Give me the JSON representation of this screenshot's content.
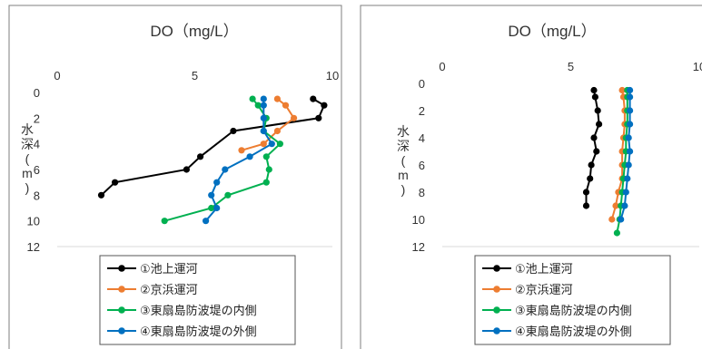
{
  "charts": [
    {
      "type": "line",
      "title": "DO（mg/L）",
      "ylabel": "水深(m)",
      "x_ticks": [
        "0",
        "5",
        "10"
      ],
      "y_ticks": [
        "0",
        "2",
        "4",
        "6",
        "8",
        "10",
        "12"
      ],
      "xlim": [
        0,
        10
      ],
      "ylim": [
        0,
        12
      ],
      "grid": false,
      "legend_position": "bottom",
      "series": [
        {
          "name": "①池上運河",
          "color": "#000000",
          "x": [
            9.3,
            9.7,
            9.5,
            6.4,
            5.2,
            4.7,
            2.1,
            1.6
          ],
          "y": [
            0.5,
            1,
            2,
            3,
            5,
            6,
            7,
            8
          ]
        },
        {
          "name": "②京浜運河",
          "color": "#ED7D31",
          "x": [
            8.0,
            8.3,
            8.6,
            8.0,
            7.5,
            6.7
          ],
          "y": [
            0.5,
            1,
            2,
            3,
            4,
            4.5
          ]
        },
        {
          "name": "③東扇島防波堤の内側",
          "color": "#00B050",
          "x": [
            7.1,
            7.3,
            7.6,
            7.5,
            8.1,
            7.6,
            7.7,
            7.6,
            6.2,
            5.6,
            3.9
          ],
          "y": [
            0.5,
            1,
            2,
            3,
            4,
            5,
            6,
            7,
            8,
            9,
            10
          ]
        },
        {
          "name": "④東扇島防波堤の外側",
          "color": "#0070C0",
          "x": [
            7.5,
            7.5,
            7.5,
            7.5,
            7.8,
            7.0,
            6.1,
            5.8,
            5.6,
            5.8,
            5.4
          ],
          "y": [
            0.5,
            1,
            2,
            3,
            4,
            5,
            6,
            7,
            8,
            9,
            10
          ]
        }
      ]
    },
    {
      "type": "line",
      "title": "DO（mg/L）",
      "ylabel": "水深(m)",
      "x_ticks": [
        "0",
        "5",
        "10"
      ],
      "y_ticks": [
        "0",
        "2",
        "4",
        "6",
        "8",
        "10",
        "12"
      ],
      "xlim": [
        0,
        10
      ],
      "ylim": [
        0,
        12
      ],
      "grid": false,
      "legend_position": "bottom",
      "series": [
        {
          "name": "①池上運河",
          "color": "#000000",
          "x": [
            5.9,
            5.95,
            6.05,
            6.1,
            5.9,
            6.0,
            5.8,
            5.75,
            5.6,
            5.6
          ],
          "y": [
            0.5,
            1,
            2,
            3,
            4,
            5,
            6,
            7,
            8,
            9
          ]
        },
        {
          "name": "②京浜運河",
          "color": "#ED7D31",
          "x": [
            7.0,
            7.05,
            7.1,
            7.1,
            7.05,
            7.0,
            7.0,
            7.0,
            6.85,
            6.75,
            6.6
          ],
          "y": [
            0.5,
            1,
            2,
            3,
            4,
            5,
            6,
            7,
            8,
            9,
            10
          ]
        },
        {
          "name": "③東扇島防波堤の内側",
          "color": "#00B050",
          "x": [
            7.2,
            7.2,
            7.2,
            7.2,
            7.15,
            7.15,
            7.1,
            7.05,
            7.0,
            6.95,
            6.9,
            6.8
          ],
          "y": [
            0.5,
            1,
            2,
            3,
            4,
            5,
            6,
            7,
            8,
            9,
            10,
            11
          ]
        },
        {
          "name": "④東扇島防波堤の外側",
          "color": "#0070C0",
          "x": [
            7.3,
            7.3,
            7.3,
            7.3,
            7.25,
            7.3,
            7.25,
            7.2,
            7.15,
            7.1,
            6.95
          ],
          "y": [
            0.5,
            1,
            2,
            3,
            4,
            5,
            6,
            7,
            8,
            9,
            10
          ]
        }
      ]
    }
  ]
}
